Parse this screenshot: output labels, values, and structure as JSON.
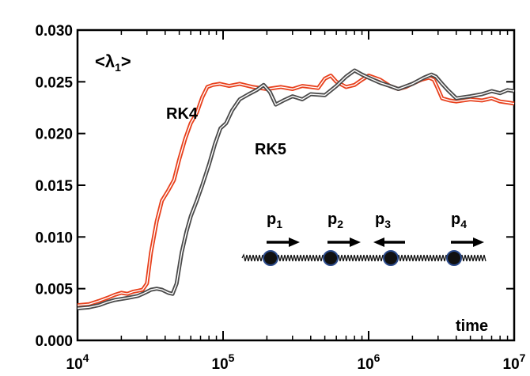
{
  "chart_data": {
    "type": "line",
    "title": "",
    "ylabel_annotation": "<λ1>",
    "xlabel_annotation": "time",
    "x_scale": "log",
    "xlim": [
      10000,
      10000000
    ],
    "ylim": [
      0.0,
      0.03
    ],
    "x_ticks": [
      {
        "value": 10000,
        "base": "10",
        "exp": "4"
      },
      {
        "value": 100000,
        "base": "10",
        "exp": "5"
      },
      {
        "value": 1000000,
        "base": "10",
        "exp": "6"
      },
      {
        "value": 10000000,
        "base": "10",
        "exp": "7"
      }
    ],
    "y_ticks": [
      "0.000",
      "0.005",
      "0.010",
      "0.015",
      "0.020",
      "0.025",
      "0.030"
    ],
    "grid": false,
    "series": [
      {
        "name": "RK4",
        "color": "#e8401c",
        "points": [
          [
            10000,
            0.0034
          ],
          [
            12000,
            0.0035
          ],
          [
            14000,
            0.0038
          ],
          [
            16000,
            0.0041
          ],
          [
            18000,
            0.0044
          ],
          [
            20000,
            0.0046
          ],
          [
            22000,
            0.0045
          ],
          [
            24000,
            0.0047
          ],
          [
            26000,
            0.0048
          ],
          [
            28000,
            0.0049
          ],
          [
            30000,
            0.0055
          ],
          [
            32000,
            0.0085
          ],
          [
            35000,
            0.0115
          ],
          [
            38000,
            0.0135
          ],
          [
            42000,
            0.0145
          ],
          [
            46000,
            0.0155
          ],
          [
            50000,
            0.0175
          ],
          [
            55000,
            0.0195
          ],
          [
            60000,
            0.021
          ],
          [
            66000,
            0.022
          ],
          [
            72000,
            0.0235
          ],
          [
            78000,
            0.0245
          ],
          [
            85000,
            0.0247
          ],
          [
            95000,
            0.0248
          ],
          [
            110000,
            0.0246
          ],
          [
            130000,
            0.0248
          ],
          [
            160000,
            0.0245
          ],
          [
            200000,
            0.0243
          ],
          [
            250000,
            0.0245
          ],
          [
            300000,
            0.0243
          ],
          [
            350000,
            0.0246
          ],
          [
            400000,
            0.0245
          ],
          [
            450000,
            0.0244
          ],
          [
            500000,
            0.0253
          ],
          [
            550000,
            0.0256
          ],
          [
            600000,
            0.025
          ],
          [
            700000,
            0.0245
          ],
          [
            800000,
            0.0247
          ],
          [
            900000,
            0.0252
          ],
          [
            1000000,
            0.0256
          ],
          [
            1200000,
            0.0252
          ],
          [
            1400000,
            0.0246
          ],
          [
            1600000,
            0.0243
          ],
          [
            1800000,
            0.0245
          ],
          [
            2000000,
            0.0248
          ],
          [
            2300000,
            0.0252
          ],
          [
            2600000,
            0.0254
          ],
          [
            2800000,
            0.0252
          ],
          [
            3000000,
            0.0243
          ],
          [
            3200000,
            0.0234
          ],
          [
            3600000,
            0.0232
          ],
          [
            4000000,
            0.0231
          ],
          [
            5000000,
            0.0233
          ],
          [
            6000000,
            0.0232
          ],
          [
            7000000,
            0.0234
          ],
          [
            8000000,
            0.0231
          ],
          [
            9000000,
            0.023
          ],
          [
            10000000,
            0.0229
          ]
        ]
      },
      {
        "name": "RK5",
        "color": "#4a4a4a",
        "points": [
          [
            10000,
            0.0031
          ],
          [
            12000,
            0.0032
          ],
          [
            14000,
            0.0034
          ],
          [
            16000,
            0.0037
          ],
          [
            18000,
            0.0039
          ],
          [
            20000,
            0.004
          ],
          [
            22000,
            0.0041
          ],
          [
            24000,
            0.0042
          ],
          [
            26000,
            0.0043
          ],
          [
            28000,
            0.0045
          ],
          [
            30000,
            0.0047
          ],
          [
            32000,
            0.0049
          ],
          [
            35000,
            0.005
          ],
          [
            38000,
            0.0049
          ],
          [
            42000,
            0.0046
          ],
          [
            45000,
            0.0045
          ],
          [
            48000,
            0.0055
          ],
          [
            52000,
            0.0085
          ],
          [
            56000,
            0.0105
          ],
          [
            60000,
            0.012
          ],
          [
            66000,
            0.0135
          ],
          [
            72000,
            0.015
          ],
          [
            80000,
            0.017
          ],
          [
            88000,
            0.019
          ],
          [
            96000,
            0.0205
          ],
          [
            105000,
            0.021
          ],
          [
            115000,
            0.0222
          ],
          [
            130000,
            0.0233
          ],
          [
            150000,
            0.0238
          ],
          [
            170000,
            0.0242
          ],
          [
            190000,
            0.0247
          ],
          [
            210000,
            0.024
          ],
          [
            230000,
            0.0228
          ],
          [
            260000,
            0.0232
          ],
          [
            300000,
            0.0236
          ],
          [
            350000,
            0.0233
          ],
          [
            400000,
            0.0238
          ],
          [
            500000,
            0.0237
          ],
          [
            600000,
            0.0246
          ],
          [
            700000,
            0.0255
          ],
          [
            800000,
            0.0261
          ],
          [
            900000,
            0.0257
          ],
          [
            1000000,
            0.0254
          ],
          [
            1200000,
            0.0249
          ],
          [
            1400000,
            0.0246
          ],
          [
            1600000,
            0.0243
          ],
          [
            2000000,
            0.0248
          ],
          [
            2400000,
            0.0254
          ],
          [
            2700000,
            0.0257
          ],
          [
            2900000,
            0.0255
          ],
          [
            3200000,
            0.0248
          ],
          [
            3500000,
            0.0242
          ],
          [
            4000000,
            0.0234
          ],
          [
            5000000,
            0.0236
          ],
          [
            6000000,
            0.0238
          ],
          [
            7000000,
            0.0241
          ],
          [
            8000000,
            0.0239
          ],
          [
            9000000,
            0.0242
          ],
          [
            10000000,
            0.0241
          ]
        ]
      }
    ],
    "curve_labels": {
      "rk4": "RK4",
      "rk5": "RK5"
    },
    "inset": {
      "labels": [
        {
          "base": "p",
          "sub": "1",
          "dir": "right"
        },
        {
          "base": "p",
          "sub": "2",
          "dir": "right"
        },
        {
          "base": "p",
          "sub": "3",
          "dir": "left"
        },
        {
          "base": "p",
          "sub": "4",
          "dir": "right"
        }
      ],
      "bead_color": "#111111",
      "bead_edge": "#2b4a8a"
    }
  }
}
